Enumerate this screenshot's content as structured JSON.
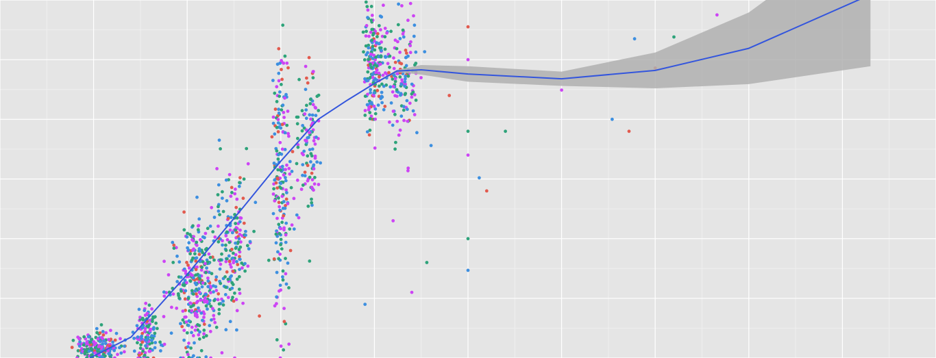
{
  "chart_data": {
    "type": "scatter",
    "title": "",
    "xlabel": "",
    "ylabel": "",
    "grid": true,
    "legend": "none",
    "xlim": [
      -0.5,
      4.5
    ],
    "ylim": [
      0,
      6
    ],
    "background_color": "#e5e5e5",
    "grid_major_color": "#ffffff",
    "grid_minor_color": "#efefef",
    "series_colors": [
      "#cd44f5",
      "#3d8fe0",
      "#2ea37a",
      "#e25a4e"
    ],
    "clusters": [
      {
        "name": "",
        "x_center": 0.02,
        "x_spread": 0.1,
        "y_center": 0.18,
        "y_spread": 0.12,
        "n": 200
      },
      {
        "name": "",
        "x_center": 0.28,
        "x_spread": 0.05,
        "y_center": 0.4,
        "y_spread": 0.25,
        "n": 120
      },
      {
        "name": "",
        "x_center": 0.55,
        "x_spread": 0.12,
        "y_center": 1.2,
        "y_spread": 0.55,
        "n": 340
      },
      {
        "name": "",
        "x_center": 0.75,
        "x_spread": 0.08,
        "y_center": 2.0,
        "y_spread": 0.6,
        "n": 160
      },
      {
        "name": "",
        "x_center": 1.0,
        "x_spread": 0.04,
        "y_center": 2.9,
        "y_spread": 1.1,
        "n": 200
      },
      {
        "name": "",
        "x_center": 1.15,
        "x_spread": 0.05,
        "y_center": 3.6,
        "y_spread": 0.7,
        "n": 110
      },
      {
        "name": "",
        "x_center": 1.5,
        "x_spread": 0.05,
        "y_center": 4.9,
        "y_spread": 0.45,
        "n": 200
      },
      {
        "name": "",
        "x_center": 1.65,
        "x_spread": 0.08,
        "y_center": 4.7,
        "y_spread": 0.5,
        "n": 140
      }
    ],
    "outliers": [
      {
        "x": 3.33,
        "y": 5.75
      },
      {
        "x": 2.89,
        "y": 5.35
      },
      {
        "x": 3.1,
        "y": 5.38
      },
      {
        "x": 3.0,
        "y": 4.86
      },
      {
        "x": 2.5,
        "y": 4.49
      },
      {
        "x": 2.77,
        "y": 4.0
      },
      {
        "x": 2.2,
        "y": 3.8
      },
      {
        "x": 2.86,
        "y": 3.8
      },
      {
        "x": 2.0,
        "y": 3.4
      },
      {
        "x": 2.0,
        "y": 1.47
      },
      {
        "x": 2.0,
        "y": 2.0
      },
      {
        "x": 2.1,
        "y": 2.8
      },
      {
        "x": 1.7,
        "y": 1.1
      },
      {
        "x": 1.45,
        "y": 0.9
      },
      {
        "x": 2.0,
        "y": 3.8
      },
      {
        "x": 2.0,
        "y": 5.55
      },
      {
        "x": 2.0,
        "y": 5.0
      },
      {
        "x": 2.06,
        "y": 3.02
      },
      {
        "x": 1.78,
        "y": 1.6
      },
      {
        "x": 1.9,
        "y": 4.4
      },
      {
        "x": 1.6,
        "y": 2.3
      }
    ],
    "smooth": {
      "x": [
        -0.02,
        0.2,
        0.5,
        0.8,
        1.0,
        1.2,
        1.35,
        1.5,
        1.62,
        1.75,
        2.0,
        2.5,
        3.0,
        3.5,
        4.15
      ],
      "y": [
        0.0,
        0.35,
        1.4,
        2.53,
        3.3,
        4.0,
        4.31,
        4.6,
        4.81,
        4.83,
        4.76,
        4.68,
        4.82,
        5.19,
        6.09
      ],
      "se": [
        0.01,
        0.01,
        0.01,
        0.01,
        0.01,
        0.01,
        0.01,
        0.015,
        0.02,
        0.08,
        0.13,
        0.12,
        0.3,
        0.6,
        1.2
      ],
      "color": "#3355dd",
      "band_color": "#b0b0b0"
    }
  }
}
